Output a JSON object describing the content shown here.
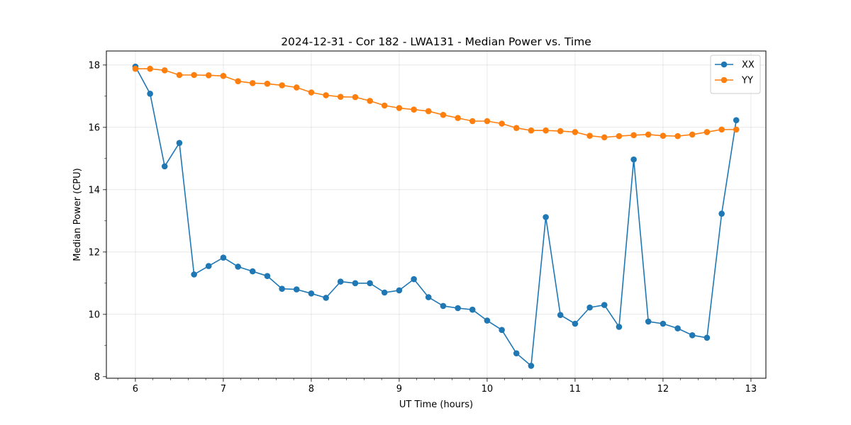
{
  "chart_data": {
    "type": "line",
    "title": "2024-12-31 - Cor 182 - LWA131 - Median Power vs. Time",
    "xlabel": "UT Time (hours)",
    "ylabel": "Median Power (CPU)",
    "xlim": [
      5.67,
      13.17
    ],
    "ylim": [
      7.95,
      18.45
    ],
    "xticks": [
      6,
      7,
      8,
      9,
      10,
      11,
      12,
      13
    ],
    "yticks": [
      8,
      10,
      12,
      14,
      16,
      18
    ],
    "grid": true,
    "legend_position": "top-right",
    "series": [
      {
        "name": "XX",
        "color": "#1f77b4",
        "x": [
          6.0,
          6.167,
          6.333,
          6.5,
          6.667,
          6.833,
          7.0,
          7.167,
          7.333,
          7.5,
          7.667,
          7.833,
          8.0,
          8.167,
          8.333,
          8.5,
          8.667,
          8.833,
          9.0,
          9.167,
          9.333,
          9.5,
          9.667,
          9.833,
          10.0,
          10.167,
          10.333,
          10.5,
          10.667,
          10.833,
          11.0,
          11.167,
          11.333,
          11.5,
          11.667,
          11.833,
          12.0,
          12.167,
          12.333,
          12.5,
          12.667,
          12.833
        ],
        "y": [
          17.95,
          17.08,
          14.75,
          15.5,
          11.28,
          11.55,
          11.82,
          11.53,
          11.38,
          11.23,
          10.82,
          10.8,
          10.67,
          10.53,
          11.05,
          11.0,
          11.0,
          10.7,
          10.77,
          11.13,
          10.55,
          10.27,
          10.2,
          10.15,
          9.8,
          9.5,
          8.75,
          8.35,
          13.12,
          9.98,
          9.7,
          10.22,
          10.3,
          9.6,
          14.97,
          9.77,
          9.7,
          9.55,
          9.33,
          9.25,
          13.23,
          16.23
        ]
      },
      {
        "name": "YY",
        "color": "#ff7f0e",
        "x": [
          6.0,
          6.167,
          6.333,
          6.5,
          6.667,
          6.833,
          7.0,
          7.167,
          7.333,
          7.5,
          7.667,
          7.833,
          8.0,
          8.167,
          8.333,
          8.5,
          8.667,
          8.833,
          9.0,
          9.167,
          9.333,
          9.5,
          9.667,
          9.833,
          10.0,
          10.167,
          10.333,
          10.5,
          10.667,
          10.833,
          11.0,
          11.167,
          11.333,
          11.5,
          11.667,
          11.833,
          12.0,
          12.167,
          12.333,
          12.5,
          12.667,
          12.833
        ],
        "y": [
          17.88,
          17.88,
          17.83,
          17.68,
          17.68,
          17.67,
          17.65,
          17.48,
          17.42,
          17.4,
          17.35,
          17.28,
          17.12,
          17.03,
          16.98,
          16.97,
          16.85,
          16.7,
          16.62,
          16.57,
          16.52,
          16.4,
          16.3,
          16.2,
          16.2,
          16.12,
          15.98,
          15.9,
          15.9,
          15.88,
          15.85,
          15.73,
          15.68,
          15.72,
          15.75,
          15.77,
          15.73,
          15.72,
          15.77,
          15.85,
          15.93,
          15.93
        ]
      }
    ]
  }
}
